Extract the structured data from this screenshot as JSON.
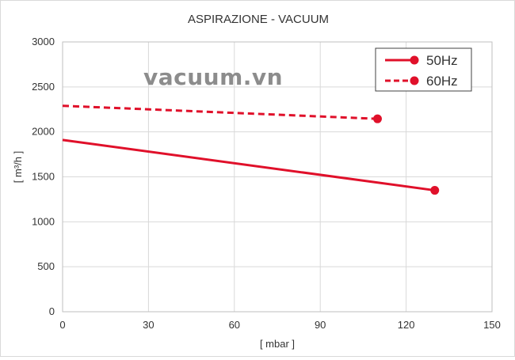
{
  "chart_data": {
    "type": "line",
    "title": "ASPIRAZIONE - VACUUM",
    "xlabel": "[ mbar ]",
    "ylabel": "[ m³/h ]",
    "xlim": [
      0,
      150
    ],
    "ylim": [
      0,
      3000
    ],
    "x_ticks": [
      "0",
      "30",
      "60",
      "90",
      "120",
      "150"
    ],
    "y_ticks": [
      "0",
      "500",
      "1000",
      "1500",
      "2000",
      "2500",
      "3000"
    ],
    "grid": true,
    "legend_position": "top-right",
    "watermark": "vacuum.vn",
    "series": [
      {
        "name": "50Hz",
        "style": "solid",
        "color": "#e0102a",
        "points": [
          [
            0,
            1910
          ],
          [
            130,
            1350
          ]
        ]
      },
      {
        "name": "60Hz",
        "style": "dashed",
        "color": "#e0102a",
        "points": [
          [
            0,
            2290
          ],
          [
            110,
            2145
          ]
        ]
      }
    ]
  }
}
